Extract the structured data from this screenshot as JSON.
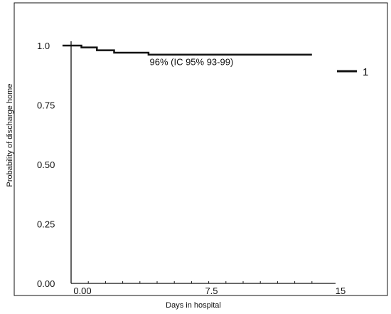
{
  "chart_data": {
    "type": "line",
    "title": "",
    "xlabel": "Days in hospital",
    "ylabel": "Probability of  discharge home",
    "xlim": [
      0,
      15
    ],
    "ylim": [
      0,
      1.0
    ],
    "x_ticks": [
      {
        "value": 0,
        "label": "0.00"
      },
      {
        "value": 7.5,
        "label": "7.5"
      },
      {
        "value": 15,
        "label": "15"
      }
    ],
    "x_minor_ticks": [
      1,
      2,
      3,
      4,
      5,
      6,
      7,
      8,
      9,
      10,
      11,
      12,
      13,
      14
    ],
    "y_ticks": [
      {
        "value": 0,
        "label": "0.00"
      },
      {
        "value": 0.25,
        "label": "0.25"
      },
      {
        "value": 0.5,
        "label": "0.50"
      },
      {
        "value": 0.75,
        "label": "0.75"
      },
      {
        "value": 1.0,
        "label": "1.0"
      }
    ],
    "series": [
      {
        "name": "1",
        "step": true,
        "x": [
          -0.5,
          0.6,
          1.5,
          2.5,
          4.5,
          14
        ],
        "y": [
          1.0,
          0.992,
          0.98,
          0.97,
          0.962,
          0.962
        ]
      }
    ],
    "annotation": {
      "text": "96% (IC 95% 93-99)",
      "x": 7,
      "y": 0.918
    },
    "legend": {
      "position": "right",
      "label": "1"
    },
    "grid": false,
    "colors": {
      "line": "#111111",
      "axis": "#111111",
      "background": "#ffffff"
    }
  }
}
